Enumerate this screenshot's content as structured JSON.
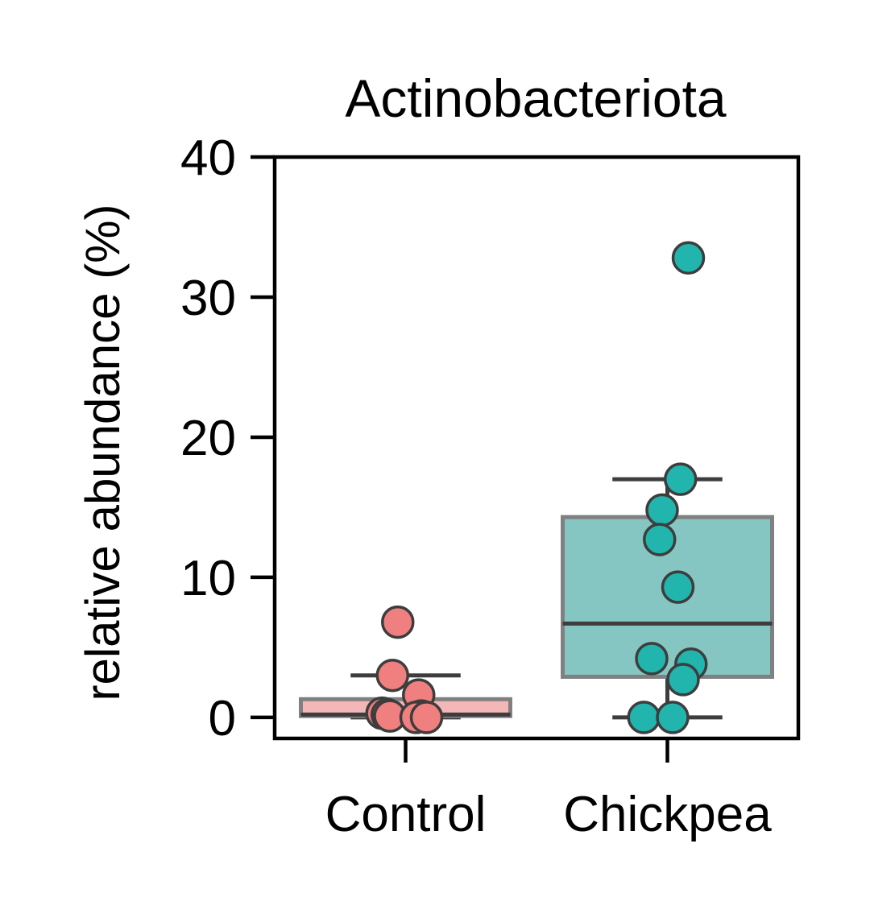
{
  "chart_data": {
    "type": "box",
    "title": "Actinobacteriota",
    "xlabel": "",
    "ylabel": "relative abundance (%)",
    "ylim": [
      -1.5,
      40
    ],
    "yticks": [
      0,
      10,
      20,
      30,
      40
    ],
    "categories": [
      "Control",
      "Chickpea"
    ],
    "colors": {
      "Control": {
        "box": "#f4b7b7",
        "point": "#f07f7f"
      },
      "Chickpea": {
        "box": "#86c6c2",
        "point": "#22b5ad"
      },
      "outline": "#3d3d3d",
      "frame": "#000000"
    },
    "boxes": [
      {
        "category": "Control",
        "whisker_low": 0.0,
        "q1": 0.1,
        "median": 0.2,
        "q3": 1.3,
        "whisker_high": 3.0
      },
      {
        "category": "Chickpea",
        "whisker_low": 0.0,
        "q1": 2.9,
        "median": 6.7,
        "q3": 14.3,
        "whisker_high": 17.0
      }
    ],
    "points": [
      {
        "category": "Control",
        "value": 6.8,
        "jitter": -0.03
      },
      {
        "category": "Control",
        "value": 3.0,
        "jitter": -0.05
      },
      {
        "category": "Control",
        "value": 1.6,
        "jitter": 0.05
      },
      {
        "category": "Control",
        "value": 0.3,
        "jitter": -0.09
      },
      {
        "category": "Control",
        "value": 0.2,
        "jitter": -0.07
      },
      {
        "category": "Control",
        "value": 0.1,
        "jitter": -0.06
      },
      {
        "category": "Control",
        "value": 0.1,
        "jitter": 0.06
      },
      {
        "category": "Control",
        "value": 0.0,
        "jitter": 0.04
      },
      {
        "category": "Control",
        "value": 0.0,
        "jitter": 0.08
      },
      {
        "category": "Chickpea",
        "value": 32.8,
        "jitter": 0.08
      },
      {
        "category": "Chickpea",
        "value": 17.0,
        "jitter": 0.05
      },
      {
        "category": "Chickpea",
        "value": 14.8,
        "jitter": -0.02
      },
      {
        "category": "Chickpea",
        "value": 12.7,
        "jitter": -0.03
      },
      {
        "category": "Chickpea",
        "value": 9.3,
        "jitter": 0.04
      },
      {
        "category": "Chickpea",
        "value": 4.2,
        "jitter": -0.06
      },
      {
        "category": "Chickpea",
        "value": 3.8,
        "jitter": 0.09
      },
      {
        "category": "Chickpea",
        "value": 2.7,
        "jitter": 0.06
      },
      {
        "category": "Chickpea",
        "value": 0.0,
        "jitter": -0.09
      },
      {
        "category": "Chickpea",
        "value": 0.0,
        "jitter": 0.02
      }
    ]
  }
}
